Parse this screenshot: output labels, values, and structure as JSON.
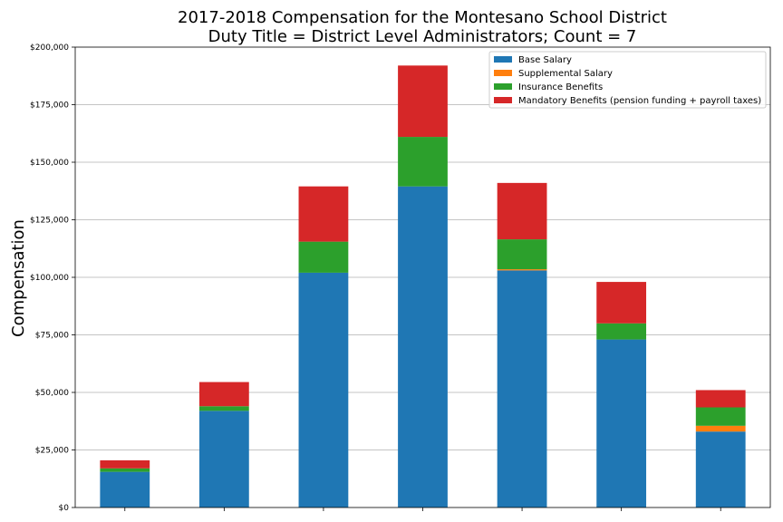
{
  "chart_data": {
    "type": "bar",
    "stacked": true,
    "title": "2017-2018 Compensation for the Montesano School District",
    "subtitle": "Duty Title = District Level Administrators; Count = 7",
    "xlabel": "",
    "ylabel": "Compensation",
    "ylim": [
      0,
      200000
    ],
    "yticks": [
      "$0",
      "$25,000",
      "$50,000",
      "$75,000",
      "$100,000",
      "$125,000",
      "$150,000",
      "$175,000",
      "$200,000"
    ],
    "categories": [
      "",
      "",
      "",
      "",
      "",
      "",
      ""
    ],
    "grid": "horizontal",
    "legend_position": "top-right",
    "series": [
      {
        "name": "Base Salary",
        "color": "#1f77b4",
        "values": [
          15500,
          42000,
          102000,
          139500,
          103000,
          73000,
          33000
        ]
      },
      {
        "name": "Supplemental Salary",
        "color": "#ff7f0e",
        "values": [
          0,
          0,
          0,
          0,
          500,
          0,
          2500
        ]
      },
      {
        "name": "Insurance Benefits",
        "color": "#2ca02c",
        "values": [
          1500,
          2000,
          13500,
          21500,
          13000,
          7000,
          8000
        ]
      },
      {
        "name": "Mandatory Benefits (pension funding + payroll taxes)",
        "color": "#d62728",
        "values": [
          3500,
          10500,
          24000,
          31000,
          24500,
          18000,
          7500
        ]
      }
    ]
  }
}
